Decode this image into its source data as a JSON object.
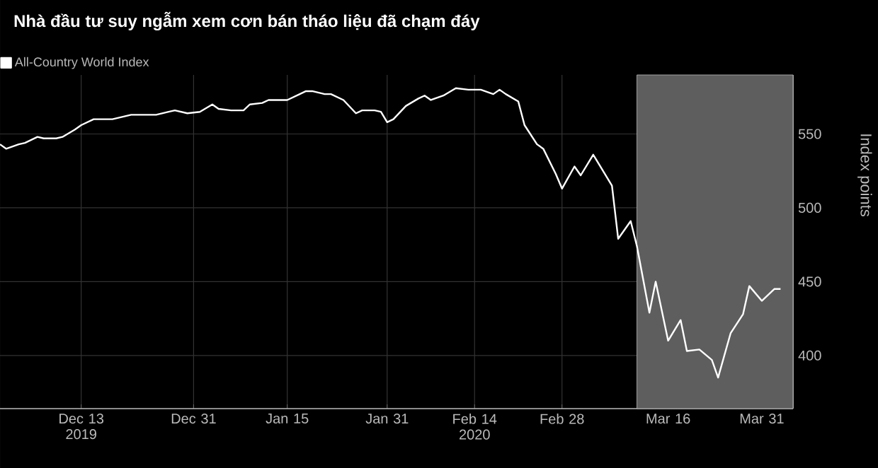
{
  "chart_data": {
    "type": "line",
    "title": "Nhà đầu tư suy ngẫm xem cơn bán tháo liệu đã chạm đáy",
    "ylabel": "Index points",
    "xlim": [
      "2019-11-30",
      "2020-04-05"
    ],
    "ylim": [
      364,
      590
    ],
    "xticks": [
      {
        "value": "2019-12-13",
        "label": "Dec 13 2019"
      },
      {
        "value": "2019-12-31",
        "label": "Dec 31"
      },
      {
        "value": "2020-01-15",
        "label": "Jan 15"
      },
      {
        "value": "2020-01-31",
        "label": "Jan 31"
      },
      {
        "value": "2020-02-14",
        "label": "Feb 14 2020"
      },
      {
        "value": "2020-02-28",
        "label": "Feb 28"
      },
      {
        "value": "2020-03-16",
        "label": "Mar 16"
      },
      {
        "value": "2020-03-31",
        "label": "Mar 31"
      }
    ],
    "yticks": [
      400,
      450,
      500,
      550
    ],
    "grid": true,
    "legend": "top left",
    "x": [
      "2019-11-30",
      "2019-12-01",
      "2019-12-03",
      "2019-12-04",
      "2019-12-06",
      "2019-12-07",
      "2019-12-09",
      "2019-12-10",
      "2019-12-12",
      "2019-12-13",
      "2019-12-15",
      "2019-12-18",
      "2019-12-21",
      "2019-12-25",
      "2019-12-27",
      "2019-12-28",
      "2019-12-30",
      "2020-01-01",
      "2020-01-03",
      "2020-01-04",
      "2020-01-06",
      "2020-01-08",
      "2020-01-09",
      "2020-01-11",
      "2020-01-12",
      "2020-01-15",
      "2020-01-17",
      "2020-01-18",
      "2020-01-19",
      "2020-01-21",
      "2020-01-22",
      "2020-01-24",
      "2020-01-26",
      "2020-01-27",
      "2020-01-29",
      "2020-01-30",
      "2020-01-31",
      "2020-02-01",
      "2020-02-03",
      "2020-02-05",
      "2020-02-06",
      "2020-02-07",
      "2020-02-09",
      "2020-02-11",
      "2020-02-13",
      "2020-02-15",
      "2020-02-17",
      "2020-02-18",
      "2020-02-19",
      "2020-02-21",
      "2020-02-22",
      "2020-02-24",
      "2020-02-25",
      "2020-02-27",
      "2020-02-28",
      "2020-03-01",
      "2020-03-02",
      "2020-03-04",
      "2020-03-05",
      "2020-03-07",
      "2020-03-08",
      "2020-03-10",
      "2020-03-11",
      "2020-03-13",
      "2020-03-14",
      "2020-03-16",
      "2020-03-18",
      "2020-03-19",
      "2020-03-21",
      "2020-03-23",
      "2020-03-24",
      "2020-03-26",
      "2020-03-28",
      "2020-03-29",
      "2020-03-31",
      "2020-04-02",
      "2020-04-03"
    ],
    "series": [
      {
        "name": "All-Country World Index",
        "color": "#ffffff",
        "values": [
          543,
          540,
          543,
          544,
          548,
          547,
          547,
          548,
          553,
          556,
          560,
          560,
          563,
          563,
          565,
          566,
          564,
          565,
          570,
          567,
          566,
          566,
          570,
          571,
          573,
          573,
          577,
          579,
          579,
          577,
          577,
          573,
          564,
          566,
          566,
          565,
          558,
          560,
          569,
          574,
          576,
          573,
          576,
          581,
          580,
          580,
          577,
          580,
          577,
          572,
          556,
          543,
          540,
          523,
          513,
          528,
          522,
          536,
          529,
          515,
          479,
          491,
          474,
          429,
          450,
          410,
          424,
          403,
          404,
          397,
          385,
          415,
          428,
          447,
          437,
          445,
          445
        ]
      }
    ],
    "bands": [
      {
        "axis": "x",
        "from": "2020-03-11",
        "to": "2020-04-05",
        "color": "#5e5e5e"
      }
    ]
  }
}
